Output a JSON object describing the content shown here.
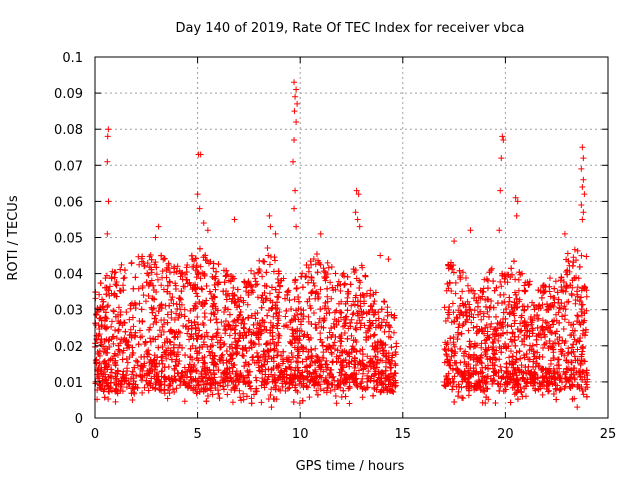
{
  "chart_data": {
    "type": "scatter",
    "title": "Day 140 of 2019, Rate Of TEC Index for receiver vbca",
    "xlabel": "GPS time / hours",
    "ylabel": "ROTI / TECUs",
    "xlim": [
      0,
      25
    ],
    "ylim": [
      0,
      0.1
    ],
    "x_ticks": [
      "0",
      "5",
      "10",
      "15",
      "20",
      "25"
    ],
    "y_ticks": [
      "0",
      "0.01",
      "0.02",
      "0.03",
      "0.04",
      "0.05",
      "0.06",
      "0.07",
      "0.08",
      "0.09",
      "0.1"
    ],
    "grid": true,
    "marker": "+",
    "series_color": "#ff0000",
    "gap_hours": [
      14.7,
      17.0
    ],
    "envelope": [
      {
        "x": 0.0,
        "top": 0.035
      },
      {
        "x": 0.5,
        "top": 0.04
      },
      {
        "x": 1.0,
        "top": 0.042
      },
      {
        "x": 1.5,
        "top": 0.044
      },
      {
        "x": 2.0,
        "top": 0.045
      },
      {
        "x": 2.5,
        "top": 0.046
      },
      {
        "x": 3.0,
        "top": 0.047
      },
      {
        "x": 3.5,
        "top": 0.044
      },
      {
        "x": 4.0,
        "top": 0.042
      },
      {
        "x": 4.5,
        "top": 0.043
      },
      {
        "x": 5.0,
        "top": 0.048
      },
      {
        "x": 5.5,
        "top": 0.046
      },
      {
        "x": 6.0,
        "top": 0.043
      },
      {
        "x": 6.5,
        "top": 0.041
      },
      {
        "x": 7.0,
        "top": 0.039
      },
      {
        "x": 7.5,
        "top": 0.04
      },
      {
        "x": 8.0,
        "top": 0.044
      },
      {
        "x": 8.5,
        "top": 0.049
      },
      {
        "x": 9.0,
        "top": 0.04
      },
      {
        "x": 9.5,
        "top": 0.037
      },
      {
        "x": 10.0,
        "top": 0.04
      },
      {
        "x": 10.5,
        "top": 0.046
      },
      {
        "x": 11.0,
        "top": 0.047
      },
      {
        "x": 11.5,
        "top": 0.042
      },
      {
        "x": 12.0,
        "top": 0.04
      },
      {
        "x": 12.5,
        "top": 0.041
      },
      {
        "x": 13.0,
        "top": 0.043
      },
      {
        "x": 13.5,
        "top": 0.036
      },
      {
        "x": 14.0,
        "top": 0.033
      },
      {
        "x": 14.6,
        "top": 0.03
      },
      {
        "x": 17.0,
        "top": 0.044
      },
      {
        "x": 17.5,
        "top": 0.043
      },
      {
        "x": 18.0,
        "top": 0.04
      },
      {
        "x": 18.5,
        "top": 0.035
      },
      {
        "x": 19.0,
        "top": 0.04
      },
      {
        "x": 19.5,
        "top": 0.042
      },
      {
        "x": 20.0,
        "top": 0.041
      },
      {
        "x": 20.5,
        "top": 0.044
      },
      {
        "x": 21.0,
        "top": 0.039
      },
      {
        "x": 21.5,
        "top": 0.036
      },
      {
        "x": 22.0,
        "top": 0.038
      },
      {
        "x": 22.5,
        "top": 0.042
      },
      {
        "x": 23.0,
        "top": 0.046
      },
      {
        "x": 23.5,
        "top": 0.048
      },
      {
        "x": 23.9,
        "top": 0.046
      }
    ],
    "outliers": [
      {
        "x": 0.65,
        "y": 0.08
      },
      {
        "x": 0.62,
        "y": 0.078
      },
      {
        "x": 0.6,
        "y": 0.071
      },
      {
        "x": 0.66,
        "y": 0.06
      },
      {
        "x": 0.6,
        "y": 0.051
      },
      {
        "x": 5.05,
        "y": 0.073
      },
      {
        "x": 5.15,
        "y": 0.073
      },
      {
        "x": 5.0,
        "y": 0.062
      },
      {
        "x": 5.1,
        "y": 0.058
      },
      {
        "x": 5.3,
        "y": 0.054
      },
      {
        "x": 5.5,
        "y": 0.052
      },
      {
        "x": 6.8,
        "y": 0.055
      },
      {
        "x": 8.5,
        "y": 0.056
      },
      {
        "x": 8.55,
        "y": 0.053
      },
      {
        "x": 9.7,
        "y": 0.093
      },
      {
        "x": 9.8,
        "y": 0.091
      },
      {
        "x": 9.75,
        "y": 0.089
      },
      {
        "x": 9.85,
        "y": 0.087
      },
      {
        "x": 9.72,
        "y": 0.085
      },
      {
        "x": 9.8,
        "y": 0.082
      },
      {
        "x": 9.7,
        "y": 0.077
      },
      {
        "x": 9.65,
        "y": 0.071
      },
      {
        "x": 9.75,
        "y": 0.063
      },
      {
        "x": 9.7,
        "y": 0.058
      },
      {
        "x": 9.8,
        "y": 0.053
      },
      {
        "x": 12.75,
        "y": 0.063
      },
      {
        "x": 12.85,
        "y": 0.062
      },
      {
        "x": 12.7,
        "y": 0.057
      },
      {
        "x": 12.8,
        "y": 0.055
      },
      {
        "x": 12.9,
        "y": 0.053
      },
      {
        "x": 19.85,
        "y": 0.078
      },
      {
        "x": 19.9,
        "y": 0.077
      },
      {
        "x": 19.8,
        "y": 0.072
      },
      {
        "x": 19.75,
        "y": 0.063
      },
      {
        "x": 19.7,
        "y": 0.052
      },
      {
        "x": 20.5,
        "y": 0.061
      },
      {
        "x": 20.6,
        "y": 0.06
      },
      {
        "x": 20.55,
        "y": 0.056
      },
      {
        "x": 23.75,
        "y": 0.075
      },
      {
        "x": 23.8,
        "y": 0.072
      },
      {
        "x": 23.7,
        "y": 0.069
      },
      {
        "x": 23.8,
        "y": 0.066
      },
      {
        "x": 23.75,
        "y": 0.064
      },
      {
        "x": 23.85,
        "y": 0.062
      },
      {
        "x": 23.7,
        "y": 0.059
      },
      {
        "x": 23.8,
        "y": 0.057
      },
      {
        "x": 23.75,
        "y": 0.055
      },
      {
        "x": 22.9,
        "y": 0.051
      },
      {
        "x": 3.1,
        "y": 0.053
      },
      {
        "x": 2.95,
        "y": 0.05
      },
      {
        "x": 8.8,
        "y": 0.051
      },
      {
        "x": 11.0,
        "y": 0.051
      },
      {
        "x": 18.3,
        "y": 0.052
      },
      {
        "x": 17.5,
        "y": 0.049
      },
      {
        "x": 12.4,
        "y": 0.004
      },
      {
        "x": 8.6,
        "y": 0.003
      },
      {
        "x": 23.5,
        "y": 0.003
      },
      {
        "x": 14.3,
        "y": 0.044
      },
      {
        "x": 13.9,
        "y": 0.045
      }
    ]
  }
}
